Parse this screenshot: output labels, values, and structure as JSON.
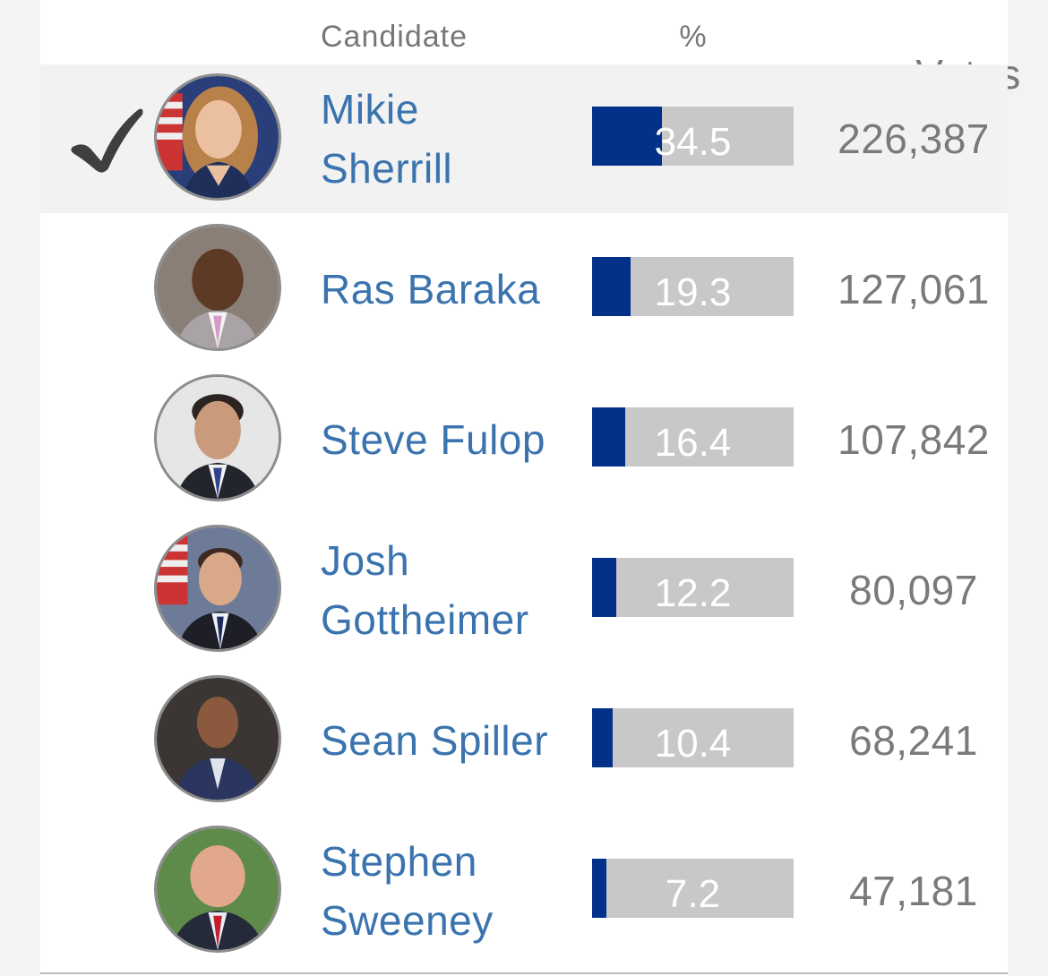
{
  "header": {
    "candidate_label": "Candidate",
    "percent_label": "%",
    "votes_label": "Votes"
  },
  "colors": {
    "name_link": "#3a73ae",
    "bar_fill": "#03318a",
    "bar_track": "#c8c8c8",
    "votes_text": "#7a7a7a",
    "winner_row_bg": "#f2f2f2"
  },
  "candidates": [
    {
      "name": "Mikie Sherrill",
      "name_lines": [
        "Mikie",
        "Sherrill"
      ],
      "percent": "34.5",
      "percent_value": 34.5,
      "votes": "226,387",
      "winner": true,
      "check_icon": "check-icon"
    },
    {
      "name": "Ras Baraka",
      "name_lines": [
        "Ras Baraka"
      ],
      "percent": "19.3",
      "percent_value": 19.3,
      "votes": "127,061",
      "winner": false
    },
    {
      "name": "Steve Fulop",
      "name_lines": [
        "Steve Fulop"
      ],
      "percent": "16.4",
      "percent_value": 16.4,
      "votes": "107,842",
      "winner": false
    },
    {
      "name": "Josh Gottheimer",
      "name_lines": [
        "Josh",
        "Gottheimer"
      ],
      "percent": "12.2",
      "percent_value": 12.2,
      "votes": "80,097",
      "winner": false
    },
    {
      "name": "Sean Spiller",
      "name_lines": [
        "Sean Spiller"
      ],
      "percent": "10.4",
      "percent_value": 10.4,
      "votes": "68,241",
      "winner": false
    },
    {
      "name": "Stephen Sweeney",
      "name_lines": [
        "Stephen",
        "Sweeney"
      ],
      "percent": "7.2",
      "percent_value": 7.2,
      "votes": "47,181",
      "winner": false
    }
  ]
}
